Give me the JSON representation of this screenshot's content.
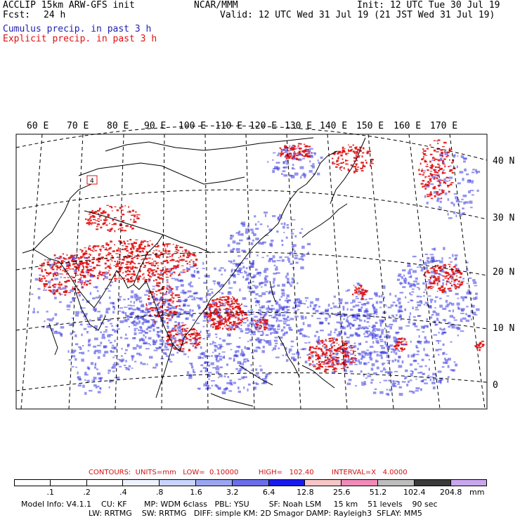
{
  "header": {
    "left_line1": "ACCLIP 15km ARW-GFS init",
    "left_line2_label": "Fcst:",
    "left_line2_value": "24 h",
    "center_line1": "NCAR/MMM",
    "right_line1": "Init: 12 UTC Tue 30 Jul 19",
    "right_line2": "Valid: 12 UTC Wed 31 Jul 19 (21 JST Wed 31 Jul 19)",
    "cumulus_label": "Cumulus precip. in past 3 h",
    "explicit_label": "Explicit precip. in past 3 h"
  },
  "map": {
    "lon_labels": [
      "60 E",
      "70 E",
      "80 E",
      "90 E",
      "100 E",
      "110 E",
      "120 E",
      "130 E",
      "140 E",
      "150 E",
      "160 E",
      "170 E"
    ],
    "lat_labels": [
      "40 N",
      "30 N",
      "20 N",
      "10 N",
      "0"
    ],
    "box_label": "4",
    "colors": {
      "cumulus": "#3a3ae0",
      "explicit": "#e01010",
      "border": "#000000",
      "grid": "#000000"
    }
  },
  "legend": {
    "contours": "CONTOURS:  UNITS=mm   LOW=  0.10000         HIGH=   102.40        INTERVAL=X   4.0000",
    "levels": [
      ".1",
      ".2",
      ".4",
      ".8",
      "1.6",
      "3.2",
      "6.4",
      "12.8",
      "25.6",
      "51.2",
      "102.4",
      "204.8"
    ],
    "unit": "mm",
    "colors": [
      "#ffffff",
      "#ffffff",
      "#ffffff",
      "#eef2ff",
      "#c8d4ff",
      "#9aa6f2",
      "#6a6ee8",
      "#1a1aee",
      "#f6c6c6",
      "#f08ab8",
      "#bdbdbd",
      "#3a3a3a",
      "#c8a6ee"
    ]
  },
  "model_info": {
    "line1": "Model Info: V4.1.1    CU: KF       MP: WDM 6class   PBL: YSU        SF: Noah LSM     15 km    51 levels    90 sec",
    "line2": "LW: RRTMG    SW: RRTMG   DIFF: simple KM: 2D Smagor DAMP: Rayleigh3  SFLAY: MM5"
  }
}
